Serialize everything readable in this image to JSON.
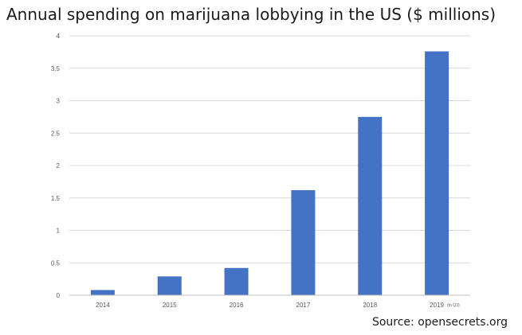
{
  "chart_data": {
    "type": "bar",
    "title": "Annual spending on marijuana lobbying in the US ($ millions)",
    "categories": [
      "2014",
      "2015",
      "2016",
      "2017",
      "2018",
      "2019"
    ],
    "category_note": {
      "category": "2019",
      "text": "(to Q3)"
    },
    "values": [
      0.08,
      0.29,
      0.42,
      1.62,
      2.75,
      3.76
    ],
    "ylim": [
      0,
      4
    ],
    "yticks": [
      "0",
      "0.5",
      "1",
      "1.5",
      "2",
      "2.5",
      "3",
      "3.5",
      "4"
    ],
    "xlabel": "",
    "ylabel": "",
    "grid": true,
    "bar_color": "#4472c4"
  },
  "source": "Source: opensecrets.org"
}
